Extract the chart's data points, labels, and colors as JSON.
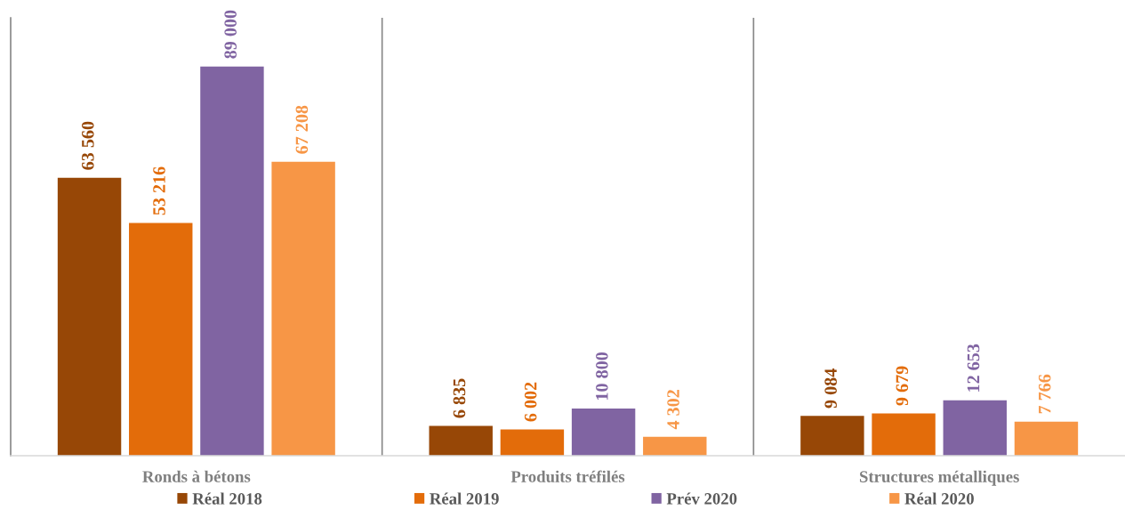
{
  "chart_data": {
    "type": "bar",
    "categories": [
      "Ronds à bétons",
      "Produits tréfilés",
      "Structures métalliques"
    ],
    "series": [
      {
        "name": "Réal 2018",
        "color": "#974706",
        "values": [
          63560,
          6835,
          9084
        ],
        "value_labels": [
          "63 560",
          "6 835",
          "9 084"
        ]
      },
      {
        "name": "Réal 2019",
        "color": "#e36c0a",
        "values": [
          53216,
          6002,
          9679
        ],
        "value_labels": [
          "53 216",
          "6 002",
          "9 679"
        ]
      },
      {
        "name": "Prév 2020",
        "color": "#8064a2",
        "values": [
          89000,
          10800,
          12653
        ],
        "value_labels": [
          "89 000",
          "10 800",
          "12 653"
        ]
      },
      {
        "name": "Réal 2020",
        "color": "#f79646",
        "values": [
          67208,
          4302,
          7766
        ],
        "value_labels": [
          "67 208",
          "4 302",
          "7 766"
        ]
      }
    ],
    "grid": "x",
    "legend": "bottom",
    "tick_labels": "x"
  }
}
